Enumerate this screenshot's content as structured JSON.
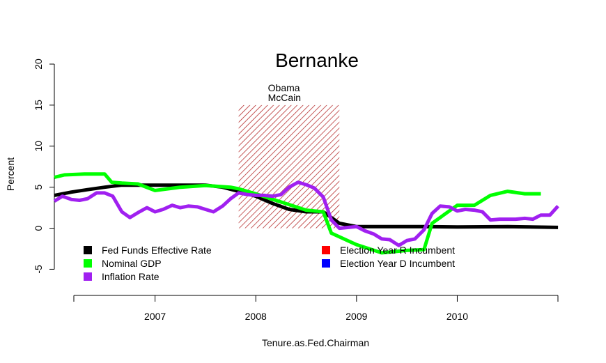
{
  "chart_data": {
    "type": "line",
    "title": "Bernanke",
    "xlabel": "Tenure.as.Fed.Chairman",
    "ylabel": "Percent",
    "xlim": [
      2006.0,
      2011.2
    ],
    "ylim": [
      -7,
      20
    ],
    "x_ticks": [
      2007,
      2008,
      2009,
      2010
    ],
    "x_tick_labels": [
      "2007",
      "2008",
      "2009",
      "2010"
    ],
    "y_ticks": [
      -5,
      0,
      5,
      10,
      15,
      20
    ],
    "y_tick_labels": [
      "-5",
      "0",
      "5",
      "10",
      "15",
      "20"
    ],
    "grid": false,
    "legend_left": [
      {
        "label": "Fed Funds Effective Rate",
        "color": "#000000"
      },
      {
        "label": "Nominal GDP",
        "color": "#00ff00"
      },
      {
        "label": "Inflation Rate",
        "color": "#a020f0"
      }
    ],
    "legend_right": [
      {
        "label": "Election Year R Incumbent",
        "color": "#ff0000"
      },
      {
        "label": "Election Year D Incumbent",
        "color": "#0000ff"
      }
    ],
    "election_region": {
      "x_start": 2007.83,
      "x_end": 2008.83,
      "y_top": 15,
      "color": "#b22222",
      "labels": [
        "Obama",
        "McCain"
      ]
    },
    "series": [
      {
        "name": "Fed Funds Effective Rate",
        "color": "#000000",
        "x": [
          2006.0,
          2006.17,
          2006.33,
          2006.5,
          2006.67,
          2006.83,
          2007.0,
          2007.25,
          2007.5,
          2007.67,
          2007.83,
          2008.0,
          2008.17,
          2008.33,
          2008.5,
          2008.67,
          2008.83,
          2009.0,
          2009.33,
          2009.67,
          2010.0,
          2010.5,
          2011.0
        ],
        "values": [
          4.0,
          4.4,
          4.7,
          5.0,
          5.25,
          5.25,
          5.25,
          5.25,
          5.25,
          5.0,
          4.5,
          3.9,
          3.0,
          2.3,
          2.0,
          2.0,
          0.6,
          0.2,
          0.2,
          0.2,
          0.15,
          0.2,
          0.1
        ]
      },
      {
        "name": "Nominal GDP",
        "color": "#00ff00",
        "x": [
          2006.0,
          2006.1,
          2006.3,
          2006.5,
          2006.57,
          2006.67,
          2006.83,
          2007.0,
          2007.25,
          2007.5,
          2007.75,
          2007.83,
          2008.0,
          2008.17,
          2008.25,
          2008.5,
          2008.67,
          2008.75,
          2009.0,
          2009.25,
          2009.5,
          2009.67,
          2009.75,
          2010.0,
          2010.17,
          2010.33,
          2010.5,
          2010.67,
          2010.83
        ],
        "values": [
          6.2,
          6.5,
          6.6,
          6.6,
          5.6,
          5.5,
          5.4,
          4.6,
          5.0,
          5.2,
          5.0,
          4.8,
          4.2,
          3.5,
          3.2,
          2.2,
          2.0,
          -0.6,
          -2.0,
          -3.0,
          -2.7,
          -2.6,
          0.6,
          2.8,
          2.8,
          4.0,
          4.5,
          4.2,
          4.2
        ]
      },
      {
        "name": "Inflation Rate",
        "color": "#a020f0",
        "x": [
          2006.0,
          2006.08,
          2006.17,
          2006.25,
          2006.33,
          2006.42,
          2006.5,
          2006.58,
          2006.67,
          2006.75,
          2006.83,
          2006.92,
          2007.0,
          2007.08,
          2007.17,
          2007.25,
          2007.33,
          2007.42,
          2007.5,
          2007.58,
          2007.67,
          2007.75,
          2007.83,
          2007.92,
          2008.0,
          2008.08,
          2008.17,
          2008.25,
          2008.33,
          2008.42,
          2008.5,
          2008.58,
          2008.67,
          2008.75,
          2008.83,
          2008.92,
          2009.0,
          2009.08,
          2009.17,
          2009.25,
          2009.33,
          2009.42,
          2009.5,
          2009.58,
          2009.67,
          2009.75,
          2009.83,
          2009.92,
          2010.0,
          2010.08,
          2010.17,
          2010.25,
          2010.33,
          2010.42,
          2010.5,
          2010.58,
          2010.67,
          2010.75,
          2010.83,
          2010.92,
          2011.0
        ],
        "values": [
          3.3,
          3.9,
          3.5,
          3.4,
          3.6,
          4.3,
          4.3,
          3.9,
          2.0,
          1.3,
          1.9,
          2.5,
          2.0,
          2.3,
          2.8,
          2.5,
          2.7,
          2.6,
          2.3,
          2.0,
          2.7,
          3.6,
          4.3,
          4.1,
          4.0,
          4.0,
          3.9,
          4.1,
          5.0,
          5.6,
          5.3,
          4.9,
          3.8,
          1.0,
          0.0,
          0.1,
          0.2,
          -0.3,
          -0.7,
          -1.3,
          -1.4,
          -2.1,
          -1.5,
          -1.3,
          -0.2,
          1.8,
          2.7,
          2.6,
          2.1,
          2.3,
          2.2,
          2.0,
          1.0,
          1.1,
          1.1,
          1.1,
          1.2,
          1.1,
          1.6,
          1.6,
          2.7
        ]
      }
    ]
  }
}
